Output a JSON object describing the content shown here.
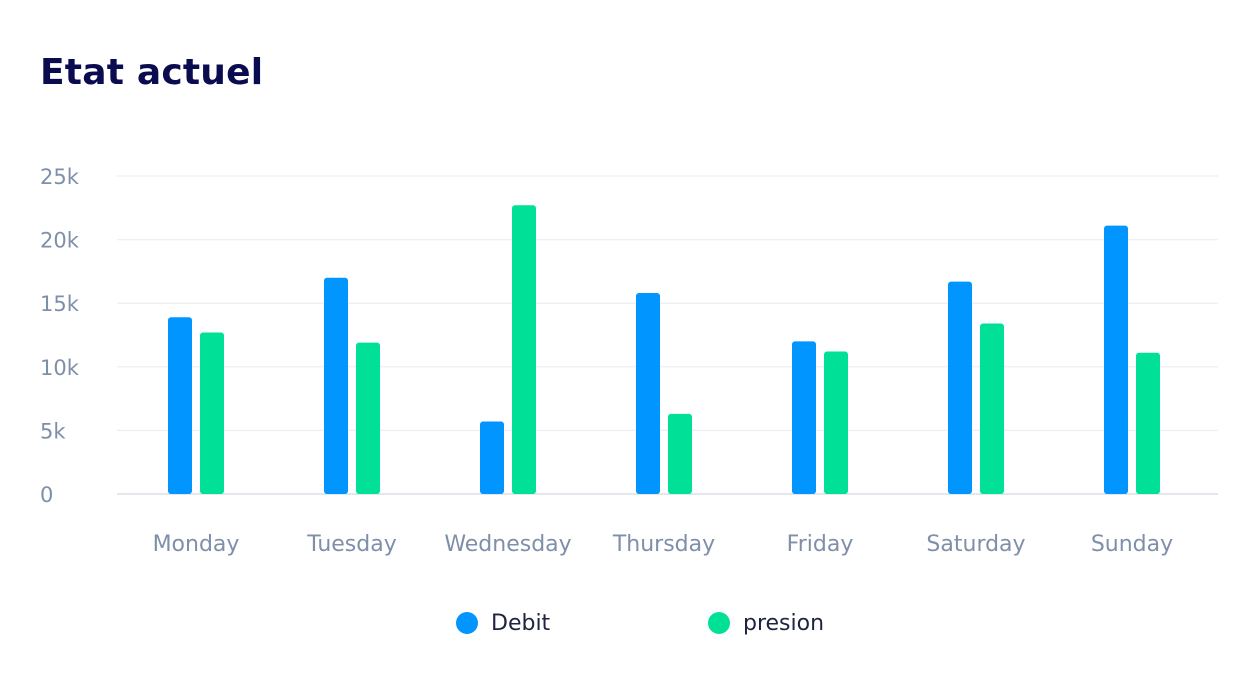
{
  "title": "Etat actuel",
  "chart_data": {
    "type": "bar",
    "title": "Etat actuel",
    "categories": [
      "Monday",
      "Tuesday",
      "Wednesday",
      "Thursday",
      "Friday",
      "Saturday",
      "Sunday"
    ],
    "series": [
      {
        "name": "Debit",
        "color": "#0095ff",
        "values": [
          13900,
          17000,
          5700,
          15800,
          12000,
          16700,
          21100
        ]
      },
      {
        "name": "presion",
        "color": "#00e096",
        "values": [
          12700,
          11900,
          22700,
          6300,
          11200,
          13400,
          11100
        ]
      }
    ],
    "ylim": [
      0,
      25000
    ],
    "yticks": [
      0,
      5000,
      10000,
      15000,
      20000,
      25000
    ],
    "ytick_labels": [
      "0",
      "5k",
      "10k",
      "15k",
      "20k",
      "25k"
    ],
    "grid": true,
    "legend_position": "bottom"
  }
}
